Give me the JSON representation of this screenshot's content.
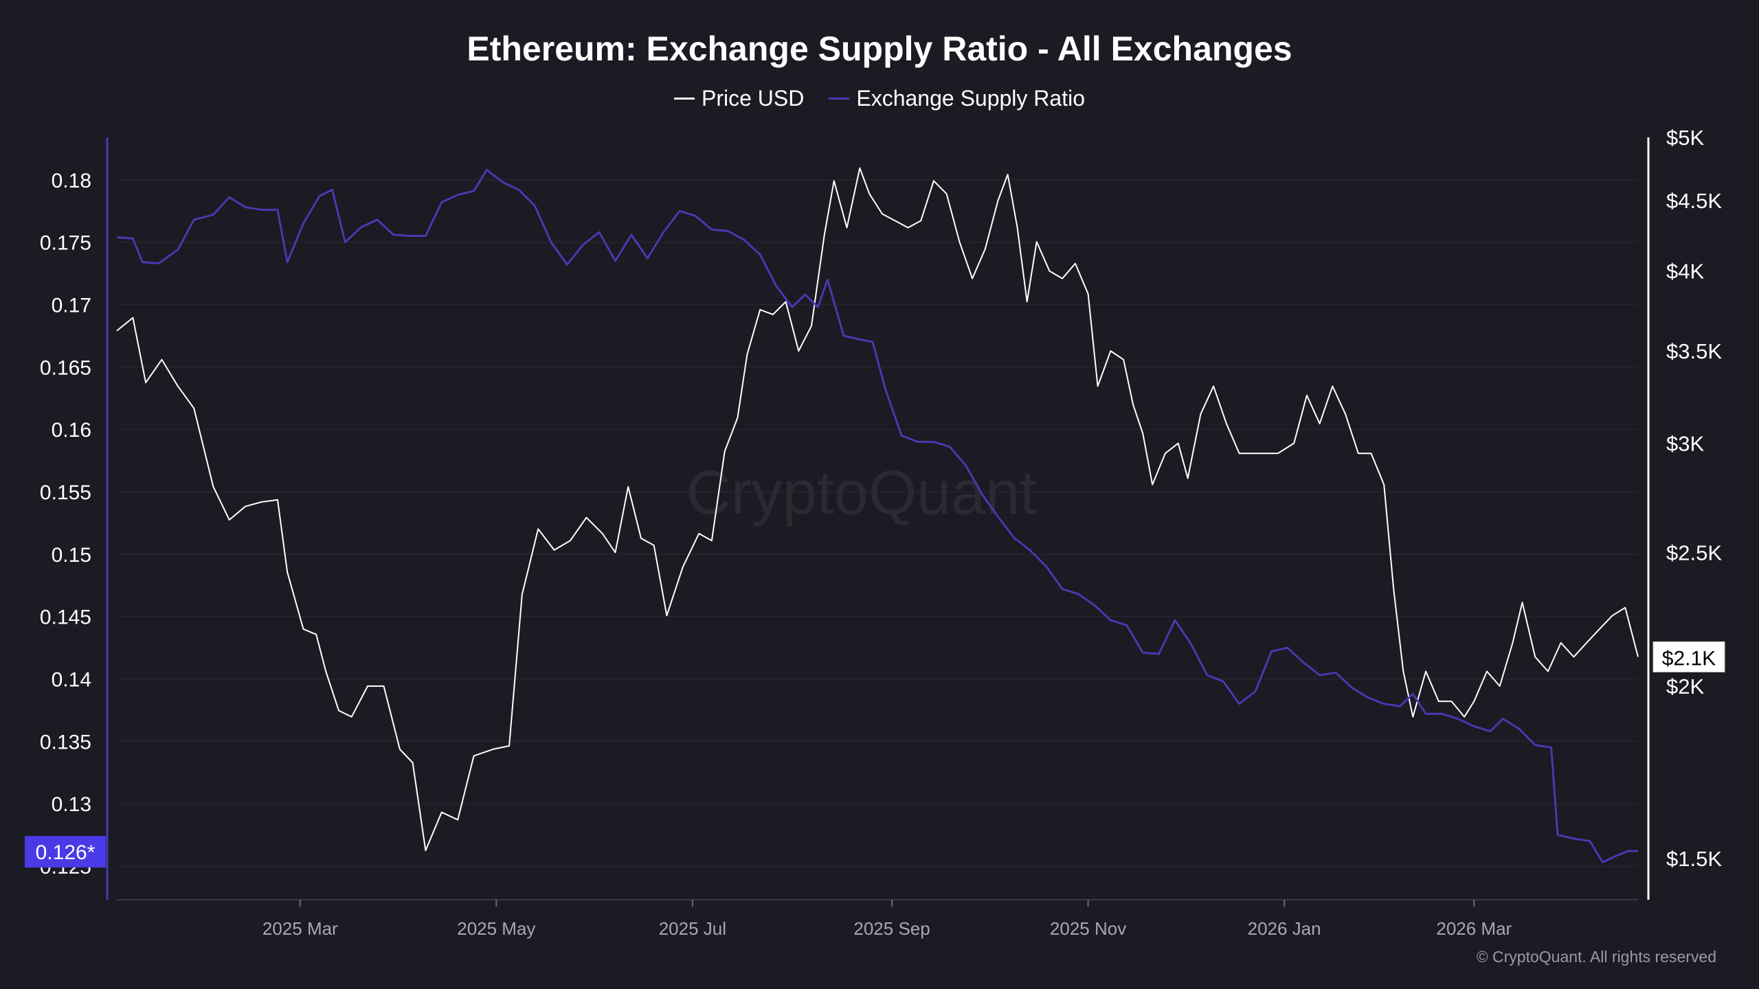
{
  "chart_data": {
    "type": "line",
    "title": "Ethereum: Exchange Supply Ratio - All Exchanges",
    "legend": {
      "placement": "top-center"
    },
    "grid": true,
    "x_axis": {
      "ticks": [
        "2025 Mar",
        "2025 May",
        "2025 Jul",
        "2025 Sep",
        "2025 Nov",
        "2026 Jan",
        "2026 Mar"
      ],
      "range": [
        "2025-01-03",
        "2026-04-21"
      ]
    },
    "left_axis": {
      "ticks": [
        "0.18",
        "0.175",
        "0.17",
        "0.165",
        "0.16",
        "0.155",
        "0.15",
        "0.145",
        "0.14",
        "0.135",
        "0.13",
        "0.125"
      ],
      "range": [
        0.1223,
        0.1834
      ],
      "current_value_label": "0.126*"
    },
    "right_axis": {
      "scale": "log",
      "ticks": [
        "$5K",
        "$4.5K",
        "$4K",
        "$3.5K",
        "$3K",
        "$2.5K",
        "$2K",
        "$1.5K"
      ],
      "range": [
        1400,
        5000
      ],
      "current_value_label": "$2.1K"
    },
    "series": [
      {
        "name": "Price USD",
        "axis": "right",
        "color": "#ffffff",
        "points": [
          [
            "2025-01-03",
            3620
          ],
          [
            "2025-01-08",
            3700
          ],
          [
            "2025-01-12",
            3320
          ],
          [
            "2025-01-17",
            3450
          ],
          [
            "2025-01-22",
            3300
          ],
          [
            "2025-01-27",
            3180
          ],
          [
            "2025-02-02",
            2790
          ],
          [
            "2025-02-07",
            2640
          ],
          [
            "2025-02-12",
            2700
          ],
          [
            "2025-02-17",
            2720
          ],
          [
            "2025-02-22",
            2730
          ],
          [
            "2025-02-25",
            2420
          ],
          [
            "2025-03-02",
            2200
          ],
          [
            "2025-03-06",
            2180
          ],
          [
            "2025-03-09",
            2050
          ],
          [
            "2025-03-13",
            1920
          ],
          [
            "2025-03-17",
            1900
          ],
          [
            "2025-03-22",
            2000
          ],
          [
            "2025-03-27",
            2000
          ],
          [
            "2025-04-01",
            1800
          ],
          [
            "2025-04-05",
            1760
          ],
          [
            "2025-04-09",
            1520
          ],
          [
            "2025-04-14",
            1620
          ],
          [
            "2025-04-19",
            1600
          ],
          [
            "2025-04-24",
            1780
          ],
          [
            "2025-04-30",
            1800
          ],
          [
            "2025-05-05",
            1810
          ],
          [
            "2025-05-09",
            2330
          ],
          [
            "2025-05-14",
            2600
          ],
          [
            "2025-05-19",
            2510
          ],
          [
            "2025-05-24",
            2550
          ],
          [
            "2025-05-29",
            2650
          ],
          [
            "2025-06-03",
            2580
          ],
          [
            "2025-06-07",
            2500
          ],
          [
            "2025-06-11",
            2790
          ],
          [
            "2025-06-15",
            2560
          ],
          [
            "2025-06-19",
            2530
          ],
          [
            "2025-06-23",
            2250
          ],
          [
            "2025-06-28",
            2440
          ],
          [
            "2025-07-03",
            2580
          ],
          [
            "2025-07-07",
            2550
          ],
          [
            "2025-07-11",
            2960
          ],
          [
            "2025-07-15",
            3130
          ],
          [
            "2025-07-18",
            3480
          ],
          [
            "2025-07-22",
            3750
          ],
          [
            "2025-07-26",
            3720
          ],
          [
            "2025-07-30",
            3800
          ],
          [
            "2025-08-03",
            3500
          ],
          [
            "2025-08-07",
            3650
          ],
          [
            "2025-08-11",
            4250
          ],
          [
            "2025-08-14",
            4650
          ],
          [
            "2025-08-18",
            4300
          ],
          [
            "2025-08-22",
            4750
          ],
          [
            "2025-08-25",
            4550
          ],
          [
            "2025-08-29",
            4400
          ],
          [
            "2025-09-02",
            4350
          ],
          [
            "2025-09-06",
            4300
          ],
          [
            "2025-09-10",
            4350
          ],
          [
            "2025-09-14",
            4650
          ],
          [
            "2025-09-18",
            4550
          ],
          [
            "2025-09-22",
            4200
          ],
          [
            "2025-09-26",
            3950
          ],
          [
            "2025-09-30",
            4150
          ],
          [
            "2025-10-04",
            4500
          ],
          [
            "2025-10-07",
            4700
          ],
          [
            "2025-10-10",
            4300
          ],
          [
            "2025-10-13",
            3800
          ],
          [
            "2025-10-16",
            4200
          ],
          [
            "2025-10-20",
            4000
          ],
          [
            "2025-10-24",
            3950
          ],
          [
            "2025-10-28",
            4050
          ],
          [
            "2025-11-01",
            3850
          ],
          [
            "2025-11-04",
            3300
          ],
          [
            "2025-11-08",
            3500
          ],
          [
            "2025-11-12",
            3450
          ],
          [
            "2025-11-15",
            3200
          ],
          [
            "2025-11-18",
            3050
          ],
          [
            "2025-11-21",
            2800
          ],
          [
            "2025-11-25",
            2950
          ],
          [
            "2025-11-29",
            3000
          ],
          [
            "2025-12-02",
            2830
          ],
          [
            "2025-12-06",
            3150
          ],
          [
            "2025-12-10",
            3300
          ],
          [
            "2025-12-14",
            3100
          ],
          [
            "2025-12-18",
            2950
          ],
          [
            "2025-12-22",
            2950
          ],
          [
            "2025-12-26",
            2950
          ],
          [
            "2025-12-30",
            2950
          ],
          [
            "2026-01-04",
            3000
          ],
          [
            "2026-01-08",
            3250
          ],
          [
            "2026-01-12",
            3100
          ],
          [
            "2026-01-16",
            3300
          ],
          [
            "2026-01-20",
            3150
          ],
          [
            "2026-01-24",
            2950
          ],
          [
            "2026-01-28",
            2950
          ],
          [
            "2026-02-01",
            2800
          ],
          [
            "2026-02-04",
            2350
          ],
          [
            "2026-02-07",
            2050
          ],
          [
            "2026-02-10",
            1900
          ],
          [
            "2026-02-14",
            2050
          ],
          [
            "2026-02-18",
            1950
          ],
          [
            "2026-02-22",
            1950
          ],
          [
            "2026-02-26",
            1900
          ],
          [
            "2026-03-01",
            1950
          ],
          [
            "2026-03-05",
            2050
          ],
          [
            "2026-03-09",
            2000
          ],
          [
            "2026-03-13",
            2150
          ],
          [
            "2026-03-16",
            2300
          ],
          [
            "2026-03-20",
            2100
          ],
          [
            "2026-03-24",
            2050
          ],
          [
            "2026-03-28",
            2150
          ],
          [
            "2026-04-01",
            2100
          ],
          [
            "2026-04-05",
            2150
          ],
          [
            "2026-04-09",
            2200
          ],
          [
            "2026-04-13",
            2250
          ],
          [
            "2026-04-17",
            2280
          ],
          [
            "2026-04-21",
            2100
          ]
        ]
      },
      {
        "name": "Exchange Supply Ratio",
        "axis": "left",
        "color": "#4a3ab8",
        "points": [
          [
            "2025-01-03",
            0.1754
          ],
          [
            "2025-01-08",
            0.1753
          ],
          [
            "2025-01-11",
            0.1734
          ],
          [
            "2025-01-16",
            0.1733
          ],
          [
            "2025-01-22",
            0.1744
          ],
          [
            "2025-01-27",
            0.1768
          ],
          [
            "2025-02-02",
            0.1772
          ],
          [
            "2025-02-07",
            0.1786
          ],
          [
            "2025-02-12",
            0.1778
          ],
          [
            "2025-02-17",
            0.1776
          ],
          [
            "2025-02-22",
            0.1776
          ],
          [
            "2025-02-25",
            0.1734
          ],
          [
            "2025-03-02",
            0.1765
          ],
          [
            "2025-03-07",
            0.1787
          ],
          [
            "2025-03-11",
            0.1792
          ],
          [
            "2025-03-15",
            0.175
          ],
          [
            "2025-03-20",
            0.1762
          ],
          [
            "2025-03-25",
            0.1768
          ],
          [
            "2025-03-30",
            0.1756
          ],
          [
            "2025-04-04",
            0.1755
          ],
          [
            "2025-04-09",
            0.1755
          ],
          [
            "2025-04-14",
            0.1782
          ],
          [
            "2025-04-19",
            0.1788
          ],
          [
            "2025-04-24",
            0.1791
          ],
          [
            "2025-04-28",
            0.1808
          ],
          [
            "2025-05-03",
            0.1798
          ],
          [
            "2025-05-08",
            0.1792
          ],
          [
            "2025-05-13",
            0.1779
          ],
          [
            "2025-05-18",
            0.175
          ],
          [
            "2025-05-23",
            0.1732
          ],
          [
            "2025-05-28",
            0.1748
          ],
          [
            "2025-06-02",
            0.1758
          ],
          [
            "2025-06-07",
            0.1735
          ],
          [
            "2025-06-12",
            0.1756
          ],
          [
            "2025-06-17",
            0.1737
          ],
          [
            "2025-06-22",
            0.1758
          ],
          [
            "2025-06-27",
            0.1775
          ],
          [
            "2025-07-02",
            0.1771
          ],
          [
            "2025-07-07",
            0.176
          ],
          [
            "2025-07-12",
            0.1759
          ],
          [
            "2025-07-17",
            0.1752
          ],
          [
            "2025-07-22",
            0.174
          ],
          [
            "2025-07-27",
            0.1715
          ],
          [
            "2025-08-01",
            0.1698
          ],
          [
            "2025-08-05",
            0.1708
          ],
          [
            "2025-08-09",
            0.1698
          ],
          [
            "2025-08-12",
            0.172
          ],
          [
            "2025-08-17",
            0.1675
          ],
          [
            "2025-08-22",
            0.1672
          ],
          [
            "2025-08-26",
            0.167
          ],
          [
            "2025-08-30",
            0.1632
          ],
          [
            "2025-09-04",
            0.1595
          ],
          [
            "2025-09-09",
            0.159
          ],
          [
            "2025-09-14",
            0.159
          ],
          [
            "2025-09-19",
            0.1586
          ],
          [
            "2025-09-24",
            0.1571
          ],
          [
            "2025-09-29",
            0.1548
          ],
          [
            "2025-10-04",
            0.153
          ],
          [
            "2025-10-09",
            0.1513
          ],
          [
            "2025-10-14",
            0.1503
          ],
          [
            "2025-10-19",
            0.149
          ],
          [
            "2025-10-24",
            0.1472
          ],
          [
            "2025-10-29",
            0.1468
          ],
          [
            "2025-11-03",
            0.1459
          ],
          [
            "2025-11-08",
            0.1447
          ],
          [
            "2025-11-13",
            0.1443
          ],
          [
            "2025-11-18",
            0.1421
          ],
          [
            "2025-11-23",
            0.142
          ],
          [
            "2025-11-28",
            0.1447
          ],
          [
            "2025-12-03",
            0.1428
          ],
          [
            "2025-12-08",
            0.1403
          ],
          [
            "2025-12-13",
            0.1398
          ],
          [
            "2025-12-18",
            0.138
          ],
          [
            "2025-12-23",
            0.139
          ],
          [
            "2025-12-28",
            0.1422
          ],
          [
            "2026-01-02",
            0.1425
          ],
          [
            "2026-01-07",
            0.1413
          ],
          [
            "2026-01-12",
            0.1403
          ],
          [
            "2026-01-17",
            0.1405
          ],
          [
            "2026-01-22",
            0.1393
          ],
          [
            "2026-01-27",
            0.1385
          ],
          [
            "2026-02-01",
            0.138
          ],
          [
            "2026-02-06",
            0.1378
          ],
          [
            "2026-02-10",
            0.1388
          ],
          [
            "2026-02-14",
            0.1372
          ],
          [
            "2026-02-19",
            0.1372
          ],
          [
            "2026-02-24",
            0.1368
          ],
          [
            "2026-03-01",
            0.1362
          ],
          [
            "2026-03-06",
            0.1358
          ],
          [
            "2026-03-10",
            0.1368
          ],
          [
            "2026-03-15",
            0.136
          ],
          [
            "2026-03-20",
            0.1347
          ],
          [
            "2026-03-25",
            0.1345
          ],
          [
            "2026-03-27",
            0.1275
          ],
          [
            "2026-04-01",
            0.1272
          ],
          [
            "2026-04-06",
            0.127
          ],
          [
            "2026-04-10",
            0.1253
          ],
          [
            "2026-04-14",
            0.1258
          ],
          [
            "2026-04-18",
            0.1262
          ],
          [
            "2026-04-21",
            0.1262
          ]
        ]
      }
    ],
    "watermark": "CryptoQuant"
  },
  "legend_items": [
    "Price USD",
    "Exchange Supply Ratio"
  ],
  "footer": "© CryptoQuant. All rights reserved"
}
